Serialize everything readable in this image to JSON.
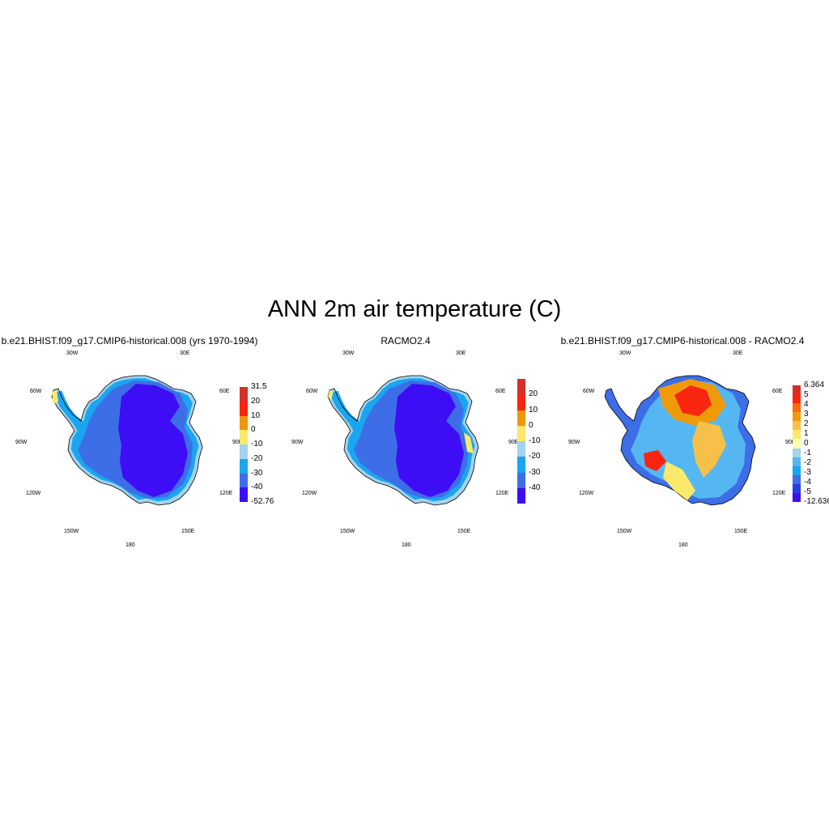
{
  "title": "ANN 2m air temperature (C)",
  "panels": [
    {
      "title": "b.e21.BHIST.f09_g17.CMIP6-historical.008 (yrs 1970-1994)",
      "kind": "model",
      "colorbar": {
        "labels": [
          "31.5",
          "20",
          "10",
          "0",
          "-10",
          "-20",
          "-30",
          "-40",
          "-52.76"
        ],
        "colors": [
          "#d62f27",
          "#f8250f",
          "#f0960a",
          "#fbe96b",
          "#a3d3ef",
          "#1aa5f0",
          "#3d6ee7",
          "#3d0df5"
        ]
      }
    },
    {
      "title": "RACMO2.4",
      "kind": "obs",
      "colorbar": {
        "labels": [
          "20",
          "10",
          "0",
          "-10",
          "-20",
          "-30",
          "-40"
        ],
        "colors": [
          "#d62f27",
          "#f8250f",
          "#f0960a",
          "#fbe96b",
          "#a3d3ef",
          "#1aa5f0",
          "#3d6ee7",
          "#3d0df5"
        ]
      }
    },
    {
      "title": "b.e21.BHIST.f09_g17.CMIP6-historical.008 - RACMO2.4",
      "kind": "diff",
      "colorbar": {
        "labels": [
          "6.364",
          "5",
          "4",
          "3",
          "2",
          "1",
          "0",
          "-1",
          "-2",
          "-3",
          "-4",
          "-5",
          "-12.636"
        ],
        "colors": [
          "#d62f27",
          "#f8250f",
          "#ff6a0a",
          "#f09a0a",
          "#f7c04a",
          "#fbe96b",
          "#ffffb0",
          "#a3d3ef",
          "#55b7f2",
          "#1aa5f0",
          "#3d6ee7",
          "#2a3ee6",
          "#3d0df5"
        ]
      }
    }
  ],
  "lon_labels": [
    "30W",
    "30E",
    "60W",
    "60E",
    "90W",
    "90E",
    "120W",
    "120E",
    "150W",
    "150E",
    "180"
  ]
}
